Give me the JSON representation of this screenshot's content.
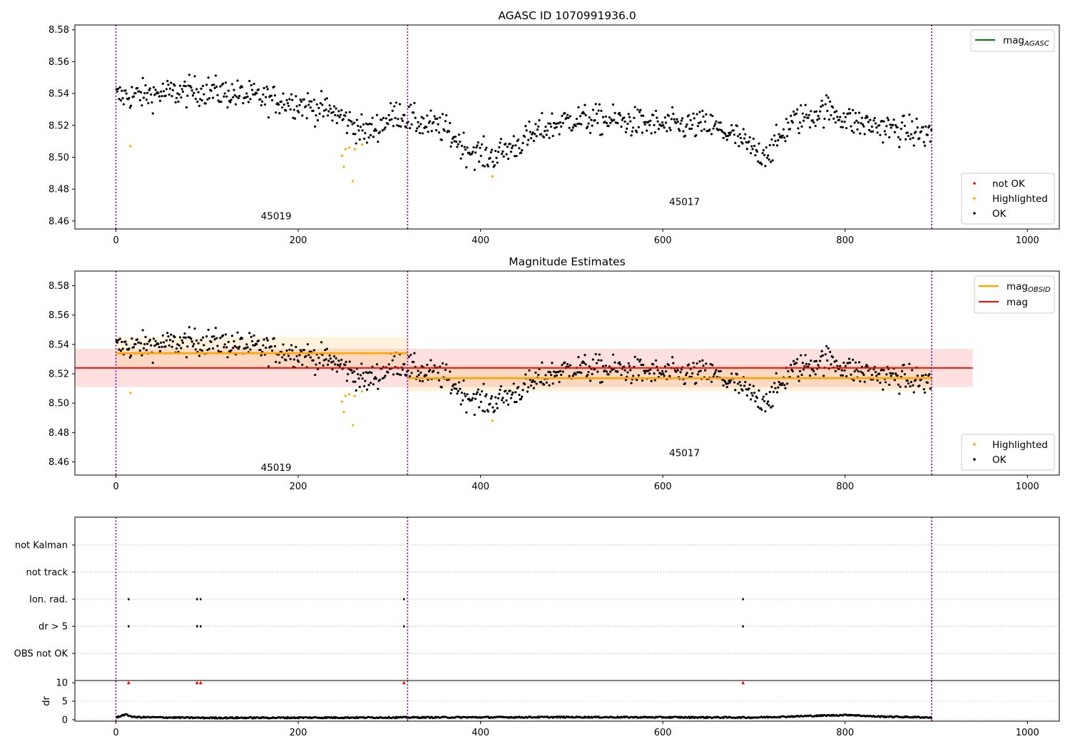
{
  "colors": {
    "ok": "#000000",
    "highlighted": "#ffa500",
    "not_ok": "#ff0000",
    "mag_agasc": "#008000",
    "mag_obsid": "#ffa500",
    "mag": "#ff0000",
    "obs_boundary": "#800080"
  },
  "chart_data": [
    {
      "type": "scatter",
      "title": "AGASC ID 1070991936.0",
      "xlabel": "",
      "ylabel": "",
      "xlim": [
        -45,
        1035
      ],
      "ylim": [
        8.455,
        8.583
      ],
      "x_ticks": [
        "0",
        "200",
        "400",
        "600",
        "800",
        "1000"
      ],
      "y_ticks": [
        "8.46",
        "8.48",
        "8.50",
        "8.52",
        "8.54",
        "8.56",
        "8.58"
      ],
      "grid": false,
      "obs_boundaries": [
        0,
        320,
        895
      ],
      "obs_labels": [
        {
          "text": "45019",
          "x": 159,
          "y": 8.461
        },
        {
          "text": "45017",
          "x": 607,
          "y": 8.47
        }
      ],
      "legend_lines": [
        {
          "name": "magAGASC",
          "label_main": "mag",
          "label_sub": "AGASC",
          "placement": "top-right"
        }
      ],
      "legend_points": [
        {
          "name": "not OK",
          "key": "not_ok"
        },
        {
          "name": "Highlighted",
          "key": "highlighted"
        },
        {
          "name": "OK",
          "key": "ok"
        }
      ],
      "legend_points_placement": "bottom-right",
      "series": [
        {
          "key": "ok",
          "n": 895,
          "x_range": [
            0,
            895
          ],
          "trend": [
            [
              0,
              8.538
            ],
            [
              100,
              8.542
            ],
            [
              200,
              8.534
            ],
            [
              240,
              8.528
            ],
            [
              275,
              8.515
            ],
            [
              310,
              8.528
            ],
            [
              330,
              8.522
            ],
            [
              360,
              8.518
            ],
            [
              385,
              8.505
            ],
            [
              410,
              8.5
            ],
            [
              440,
              8.508
            ],
            [
              470,
              8.518
            ],
            [
              500,
              8.524
            ],
            [
              550,
              8.523
            ],
            [
              600,
              8.52
            ],
            [
              650,
              8.52
            ],
            [
              680,
              8.513
            ],
            [
              705,
              8.502
            ],
            [
              720,
              8.505
            ],
            [
              740,
              8.522
            ],
            [
              780,
              8.53
            ],
            [
              810,
              8.522
            ],
            [
              850,
              8.518
            ],
            [
              895,
              8.514
            ]
          ]
        },
        {
          "key": "highlighted",
          "points": [
            [
              16,
              8.507
            ],
            [
              248,
              8.501
            ],
            [
              250,
              8.494
            ],
            [
              252,
              8.505
            ],
            [
              256,
              8.506
            ],
            [
              260,
              8.485
            ],
            [
              262,
              8.505
            ],
            [
              270,
              8.508
            ],
            [
              413,
              8.488
            ]
          ]
        }
      ]
    },
    {
      "type": "scatter",
      "title": "Magnitude Estimates",
      "xlabel": "",
      "ylabel": "",
      "xlim": [
        -45,
        1035
      ],
      "ylim": [
        8.451,
        8.59
      ],
      "x_ticks": [
        "0",
        "200",
        "400",
        "600",
        "800",
        "1000"
      ],
      "y_ticks": [
        "8.46",
        "8.48",
        "8.50",
        "8.52",
        "8.54",
        "8.56",
        "8.58"
      ],
      "grid": false,
      "obs_boundaries": [
        0,
        320,
        895
      ],
      "obs_labels": [
        {
          "text": "45019",
          "x": 159,
          "y": 8.454
        },
        {
          "text": "45017",
          "x": 607,
          "y": 8.464
        }
      ],
      "legend_lines": [
        {
          "name": "magOBSID",
          "label_main": "mag",
          "label_sub": "OBSID",
          "placement": "top-right"
        },
        {
          "name": "mag",
          "label_main": "mag",
          "label_sub": "",
          "placement": "top-right"
        }
      ],
      "legend_points": [
        {
          "name": "Highlighted",
          "key": "highlighted"
        },
        {
          "name": "OK",
          "key": "ok"
        }
      ],
      "legend_points_placement": "bottom-right",
      "mag": {
        "value": 8.524,
        "band": [
          8.511,
          8.537
        ],
        "x_range": [
          -45,
          940
        ]
      },
      "mag_obsid": [
        {
          "x_range": [
            0,
            320
          ],
          "value": 8.534,
          "band": [
            8.523,
            8.545
          ]
        },
        {
          "x_range": [
            320,
            895
          ],
          "value": 8.517,
          "band": [
            8.508,
            8.526
          ]
        }
      ]
    },
    {
      "type": "scatter",
      "title": "",
      "xlabel": "",
      "ylabel": "dr",
      "xlim": [
        -45,
        1035
      ],
      "x_ticks": [
        "0",
        "200",
        "400",
        "600",
        "800",
        "1000"
      ],
      "flag_rows": [
        "not Kalman",
        "not track",
        "Ion. rad.",
        "dr > 5",
        "OBS not OK"
      ],
      "flags": [
        {
          "row": "Ion. rad.",
          "x": [
            14,
            89,
            93,
            316,
            688
          ]
        },
        {
          "row": "dr > 5",
          "x": [
            14,
            89,
            93,
            316,
            688
          ]
        }
      ],
      "dr_ylim": [
        -0.4,
        10.6
      ],
      "dr_ticks": [
        "0",
        "5",
        "10"
      ],
      "dr_clipped": [
        [
          14,
          10
        ],
        [
          89,
          10
        ],
        [
          93,
          10
        ],
        [
          316,
          10
        ],
        [
          688,
          10
        ]
      ],
      "dr_baseline": [
        [
          0,
          0.6
        ],
        [
          10,
          1.4
        ],
        [
          20,
          0.7
        ],
        [
          100,
          0.5
        ],
        [
          300,
          0.6
        ],
        [
          500,
          0.7
        ],
        [
          700,
          0.6
        ],
        [
          805,
          1.3
        ],
        [
          830,
          0.9
        ],
        [
          895,
          0.6
        ]
      ]
    }
  ]
}
